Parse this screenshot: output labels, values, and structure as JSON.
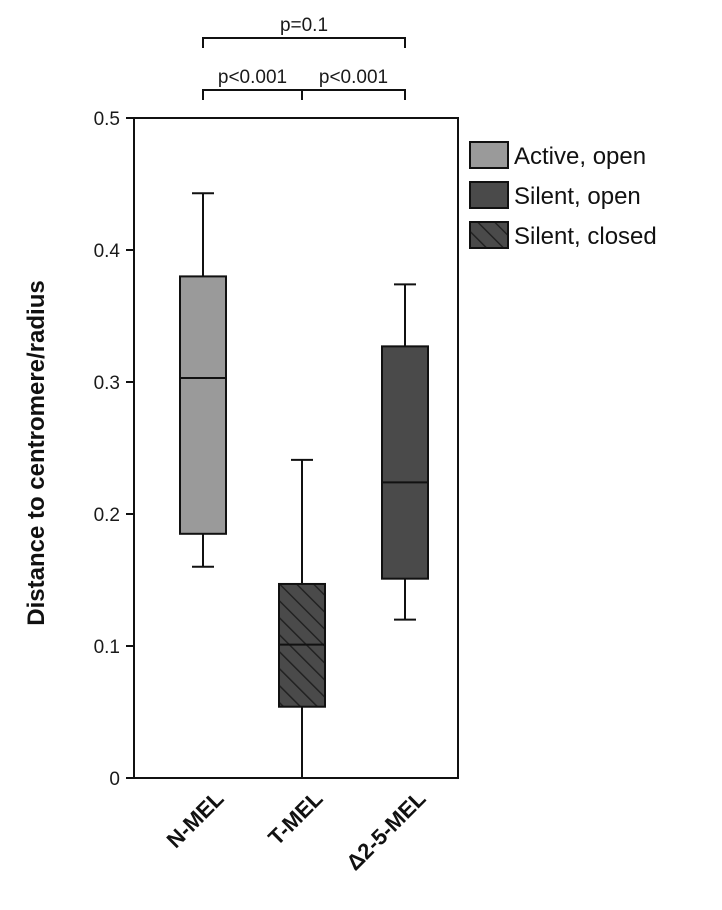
{
  "chart_data": {
    "type": "box",
    "ylabel": "Distance to centromere/radius",
    "ylim": [
      0,
      0.5
    ],
    "yticks": [
      "0",
      "0.1",
      "0.2",
      "0.3",
      "0.4",
      "0.5"
    ],
    "categories": [
      "N-MEL",
      "T-MEL",
      "Δ2-5-MEL"
    ],
    "boxes": [
      {
        "category": "N-MEL",
        "whisker_low": 0.16,
        "q1": 0.185,
        "median": 0.303,
        "q3": 0.38,
        "whisker_high": 0.443,
        "group": "Active, open"
      },
      {
        "category": "T-MEL",
        "whisker_low": 0.0,
        "q1": 0.054,
        "median": 0.101,
        "q3": 0.147,
        "whisker_high": 0.241,
        "group": "Silent, closed"
      },
      {
        "category": "Δ2-5-MEL",
        "whisker_low": 0.12,
        "q1": 0.151,
        "median": 0.224,
        "q3": 0.327,
        "whisker_high": 0.374,
        "group": "Silent, open"
      }
    ],
    "legend": {
      "position": "right",
      "items": [
        {
          "label": "Active, open",
          "fill": "#9a9a9a",
          "hatch": false
        },
        {
          "label": "Silent, open",
          "fill": "#4a4a4a",
          "hatch": false
        },
        {
          "label": "Silent, closed",
          "fill": "#4a4a4a",
          "hatch": true
        }
      ]
    },
    "significance": [
      {
        "from": 0,
        "to": 1,
        "label": "p<0.001",
        "level": 1
      },
      {
        "from": 1,
        "to": 2,
        "label": "p<0.001",
        "level": 1
      },
      {
        "from": 0,
        "to": 2,
        "label": "p=0.1",
        "level": 2
      }
    ],
    "colors": {
      "active": "#9a9a9a",
      "silent": "#4a4a4a",
      "line": "#111111"
    }
  }
}
